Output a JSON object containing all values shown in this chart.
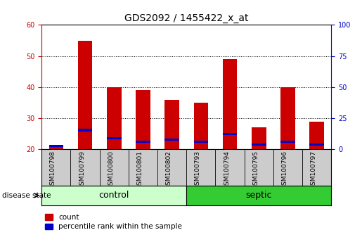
{
  "title": "GDS2092 / 1455422_x_at",
  "samples": [
    "GSM100798",
    "GSM100799",
    "GSM100800",
    "GSM100801",
    "GSM100802",
    "GSM100793",
    "GSM100794",
    "GSM100795",
    "GSM100796",
    "GSM100797"
  ],
  "count_values": [
    21,
    55,
    40,
    39,
    36,
    35,
    49,
    27,
    40,
    29
  ],
  "percentile_values": [
    21.2,
    26.2,
    23.5,
    22.5,
    23.2,
    22.5,
    25.0,
    21.5,
    22.5,
    21.5
  ],
  "bar_color_red": "#cc0000",
  "bar_color_blue": "#0000cc",
  "ylim_left": [
    20,
    60
  ],
  "ylim_right": [
    0,
    100
  ],
  "yticks_left": [
    20,
    30,
    40,
    50,
    60
  ],
  "yticks_right": [
    0,
    25,
    50,
    75,
    100
  ],
  "control_color_light": "#ccffcc",
  "septic_color_dark": "#33cc33",
  "tick_label_area_color": "#cccccc",
  "bar_width": 0.5,
  "title_fontsize": 10,
  "axis_fontsize": 7,
  "tick_fontsize": 6.5,
  "legend_fontsize": 7.5,
  "group_fontsize": 9
}
